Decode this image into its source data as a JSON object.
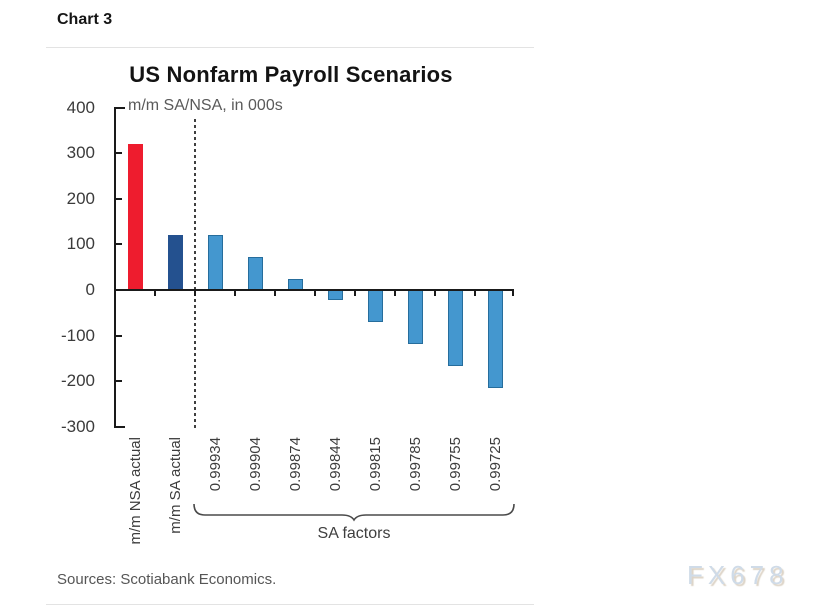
{
  "header": {
    "label": "Chart 3"
  },
  "chart_data": {
    "type": "bar",
    "title": "US Nonfarm Payroll Scenarios",
    "subtitle": "m/m SA/NSA, in 000s",
    "ylim": [
      -300,
      400
    ],
    "y_ticks": [
      400,
      300,
      200,
      100,
      0,
      -100,
      -200,
      -300
    ],
    "grid": false,
    "legend": "none",
    "bars": [
      {
        "label": "m/m NSA actual",
        "value": 320,
        "fill": "#ee1c2e",
        "stroke": null
      },
      {
        "label": "m/m SA actual",
        "value": 120,
        "fill": "#24518f",
        "stroke": null
      },
      {
        "label": "0.99934",
        "value": 120,
        "fill": "#4497cf",
        "stroke": "#266d9c"
      },
      {
        "label": "0.99904",
        "value": 72,
        "fill": "#4497cf",
        "stroke": "#266d9c"
      },
      {
        "label": "0.99874",
        "value": 25,
        "fill": "#4497cf",
        "stroke": "#266d9c"
      },
      {
        "label": "0.99844",
        "value": -23,
        "fill": "#4497cf",
        "stroke": "#266d9c"
      },
      {
        "label": "0.99815",
        "value": -71,
        "fill": "#4497cf",
        "stroke": "#266d9c"
      },
      {
        "label": "0.99785",
        "value": -119,
        "fill": "#4497cf",
        "stroke": "#266d9c"
      },
      {
        "label": "0.99755",
        "value": -167,
        "fill": "#4497cf",
        "stroke": "#266d9c"
      },
      {
        "label": "0.99725",
        "value": -215,
        "fill": "#4497cf",
        "stroke": "#266d9c"
      }
    ],
    "divider_after_index": 1,
    "group_label": "SA factors",
    "group_start_index": 2,
    "group_end_index": 9
  },
  "footer": {
    "source": "Sources: Scotiabank Economics."
  },
  "watermark": {
    "text": "FX678",
    "color": "#cfdbe8"
  }
}
